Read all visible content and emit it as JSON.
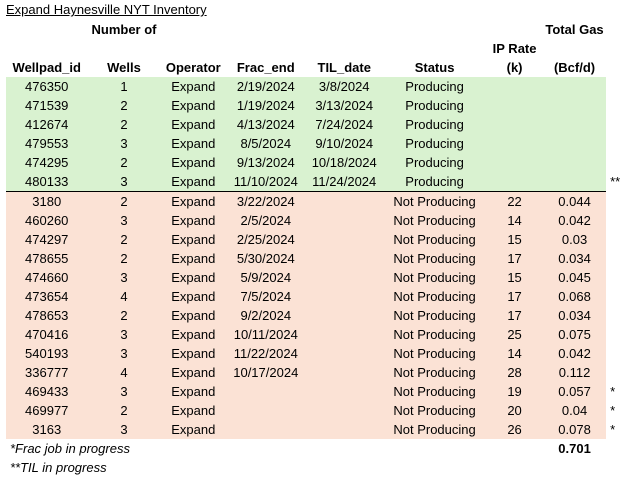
{
  "title": "Expand Haynesville NYT Inventory",
  "headers": {
    "wellpad": "Wellpad_id",
    "wells_top": "Number of",
    "wells_bottom": "Wells",
    "operator": "Operator",
    "frac": "Frac_end",
    "til": "TIL_date",
    "status": "Status",
    "ip": "IP Rate (k)",
    "gas_top": "Total Gas",
    "gas_bottom": "(Bcf/d)"
  },
  "rows": [
    {
      "id": "476350",
      "wells": "1",
      "op": "Expand",
      "frac": "2/19/2024",
      "til": "3/8/2024",
      "status": "Producing",
      "ip": "",
      "gas": "",
      "mark": ""
    },
    {
      "id": "471539",
      "wells": "2",
      "op": "Expand",
      "frac": "1/19/2024",
      "til": "3/13/2024",
      "status": "Producing",
      "ip": "",
      "gas": "",
      "mark": ""
    },
    {
      "id": "412674",
      "wells": "2",
      "op": "Expand",
      "frac": "4/13/2024",
      "til": "7/24/2024",
      "status": "Producing",
      "ip": "",
      "gas": "",
      "mark": ""
    },
    {
      "id": "479553",
      "wells": "3",
      "op": "Expand",
      "frac": "8/5/2024",
      "til": "9/10/2024",
      "status": "Producing",
      "ip": "",
      "gas": "",
      "mark": ""
    },
    {
      "id": "474295",
      "wells": "2",
      "op": "Expand",
      "frac": "9/13/2024",
      "til": "10/18/2024",
      "status": "Producing",
      "ip": "",
      "gas": "",
      "mark": ""
    },
    {
      "id": "480133",
      "wells": "3",
      "op": "Expand",
      "frac": "11/10/2024",
      "til": "11/24/2024",
      "status": "Producing",
      "ip": "",
      "gas": "",
      "mark": "**"
    },
    {
      "id": "3180",
      "wells": "2",
      "op": "Expand",
      "frac": "3/22/2024",
      "til": "",
      "status": "Not Producing",
      "ip": "22",
      "gas": "0.044",
      "mark": ""
    },
    {
      "id": "460260",
      "wells": "3",
      "op": "Expand",
      "frac": "2/5/2024",
      "til": "",
      "status": "Not Producing",
      "ip": "14",
      "gas": "0.042",
      "mark": ""
    },
    {
      "id": "474297",
      "wells": "2",
      "op": "Expand",
      "frac": "2/25/2024",
      "til": "",
      "status": "Not Producing",
      "ip": "15",
      "gas": "0.03",
      "mark": ""
    },
    {
      "id": "478655",
      "wells": "2",
      "op": "Expand",
      "frac": "5/30/2024",
      "til": "",
      "status": "Not Producing",
      "ip": "17",
      "gas": "0.034",
      "mark": ""
    },
    {
      "id": "474660",
      "wells": "3",
      "op": "Expand",
      "frac": "5/9/2024",
      "til": "",
      "status": "Not Producing",
      "ip": "15",
      "gas": "0.045",
      "mark": ""
    },
    {
      "id": "473654",
      "wells": "4",
      "op": "Expand",
      "frac": "7/5/2024",
      "til": "",
      "status": "Not Producing",
      "ip": "17",
      "gas": "0.068",
      "mark": ""
    },
    {
      "id": "478653",
      "wells": "2",
      "op": "Expand",
      "frac": "9/2/2024",
      "til": "",
      "status": "Not Producing",
      "ip": "17",
      "gas": "0.034",
      "mark": ""
    },
    {
      "id": "470416",
      "wells": "3",
      "op": "Expand",
      "frac": "10/11/2024",
      "til": "",
      "status": "Not Producing",
      "ip": "25",
      "gas": "0.075",
      "mark": ""
    },
    {
      "id": "540193",
      "wells": "3",
      "op": "Expand",
      "frac": "11/22/2024",
      "til": "",
      "status": "Not Producing",
      "ip": "14",
      "gas": "0.042",
      "mark": ""
    },
    {
      "id": "336777",
      "wells": "4",
      "op": "Expand",
      "frac": "10/17/2024",
      "til": "",
      "status": "Not Producing",
      "ip": "28",
      "gas": "0.112",
      "mark": ""
    },
    {
      "id": "469433",
      "wells": "3",
      "op": "Expand",
      "frac": "",
      "til": "",
      "status": "Not Producing",
      "ip": "19",
      "gas": "0.057",
      "mark": "*"
    },
    {
      "id": "469977",
      "wells": "2",
      "op": "Expand",
      "frac": "",
      "til": "",
      "status": "Not Producing",
      "ip": "20",
      "gas": "0.04",
      "mark": "*"
    },
    {
      "id": "3163",
      "wells": "3",
      "op": "Expand",
      "frac": "",
      "til": "",
      "status": "Not Producing",
      "ip": "26",
      "gas": "0.078",
      "mark": "*"
    }
  ],
  "footnotes": {
    "frac": "*Frac job in progress",
    "til": "**TIL in progress"
  },
  "total_gas": "0.701",
  "colors": {
    "producing_bg": "#d9f2d0",
    "not_producing_bg": "#fbe2d5"
  }
}
